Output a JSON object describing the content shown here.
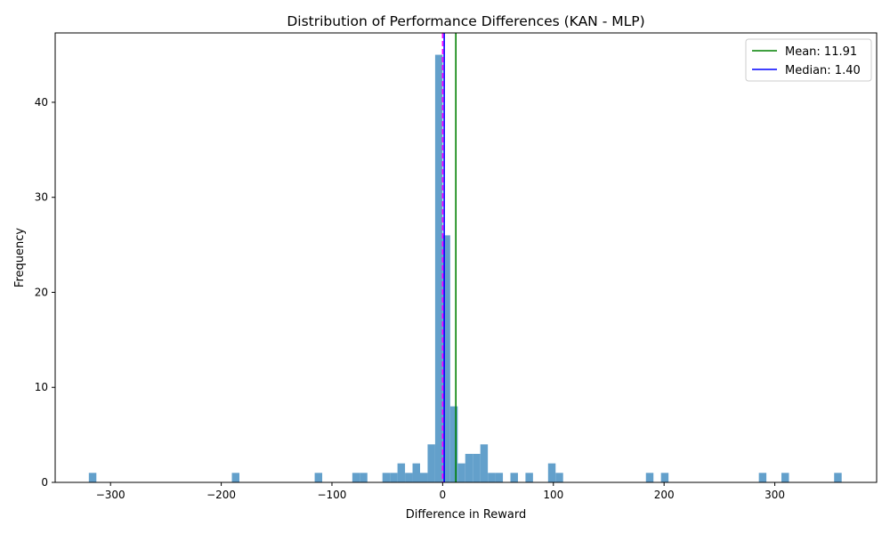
{
  "chart_data": {
    "type": "bar",
    "title": "Distribution of Performance Differences (KAN - MLP)",
    "xlabel": "Difference in Reward",
    "ylabel": "Frequency",
    "xlim": [
      -350,
      392
    ],
    "ylim": [
      0,
      47.3
    ],
    "xticks": [
      -300,
      -200,
      -100,
      0,
      100,
      200,
      300
    ],
    "yticks": [
      0,
      10,
      20,
      30,
      40
    ],
    "bin_width": 6.8,
    "bar_color": "#5b9bc8",
    "bins": [
      {
        "start": -319.6,
        "count": 1
      },
      {
        "start": -190.4,
        "count": 1
      },
      {
        "start": -115.6,
        "count": 1
      },
      {
        "start": -81.6,
        "count": 1
      },
      {
        "start": -74.8,
        "count": 1
      },
      {
        "start": -54.4,
        "count": 1
      },
      {
        "start": -47.6,
        "count": 1
      },
      {
        "start": -40.8,
        "count": 2
      },
      {
        "start": -34.0,
        "count": 1
      },
      {
        "start": -27.2,
        "count": 2
      },
      {
        "start": -20.4,
        "count": 1
      },
      {
        "start": -13.6,
        "count": 4
      },
      {
        "start": -6.8,
        "count": 45
      },
      {
        "start": 0.0,
        "count": 26
      },
      {
        "start": 6.8,
        "count": 8
      },
      {
        "start": 13.6,
        "count": 2
      },
      {
        "start": 20.4,
        "count": 3
      },
      {
        "start": 27.2,
        "count": 3
      },
      {
        "start": 34.0,
        "count": 4
      },
      {
        "start": 40.8,
        "count": 1
      },
      {
        "start": 47.6,
        "count": 1
      },
      {
        "start": 61.2,
        "count": 1
      },
      {
        "start": 74.8,
        "count": 1
      },
      {
        "start": 95.2,
        "count": 2
      },
      {
        "start": 102.0,
        "count": 1
      },
      {
        "start": 183.6,
        "count": 1
      },
      {
        "start": 197.2,
        "count": 1
      },
      {
        "start": 285.6,
        "count": 1
      },
      {
        "start": 306.0,
        "count": 1
      },
      {
        "start": 353.6,
        "count": 1
      }
    ],
    "reference_lines": [
      {
        "name": "Mean: 11.91",
        "value": 11.91,
        "color": "#008000",
        "style": "solid",
        "in_legend": true
      },
      {
        "name": "Median: 1.40",
        "value": 1.4,
        "color": "#0000ff",
        "style": "solid",
        "in_legend": true
      },
      {
        "name": "",
        "value": 0,
        "color": "#ff00ff",
        "style": "dashed",
        "in_legend": false
      }
    ],
    "legend_position": "top-right"
  }
}
